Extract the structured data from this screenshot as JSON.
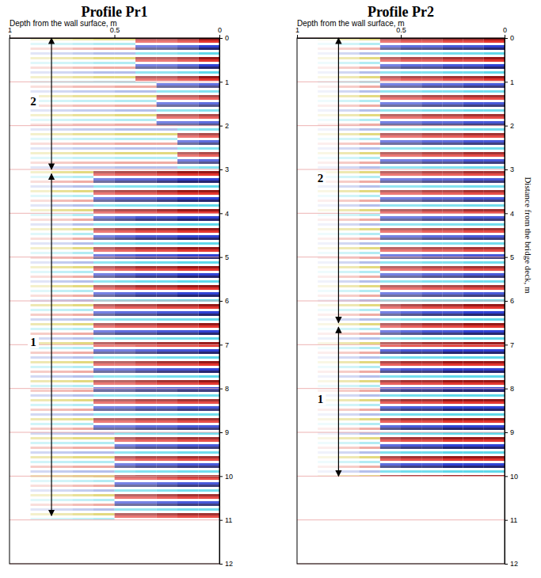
{
  "chart_data": [
    {
      "type": "heatmap",
      "title": "Profile Pr1",
      "x_label": "Depth from the wall surface, m",
      "xlim": [
        1,
        0
      ],
      "xticks": [
        1,
        0.5,
        0
      ],
      "ylim": [
        0,
        12
      ],
      "yticks": [
        0,
        1,
        2,
        3,
        4,
        5,
        6,
        7,
        8,
        9,
        10,
        11,
        12
      ],
      "grid": true,
      "depth_bins": [
        0,
        0.1,
        0.2,
        0.3,
        0.4,
        0.5,
        0.6,
        0.7,
        0.8,
        0.9
      ],
      "distance_bins": [
        0,
        1,
        2,
        3,
        4,
        5,
        6,
        7,
        8,
        9,
        10,
        11
      ],
      "amplitude": [
        [
          0.9,
          0.7,
          0.6,
          0.6,
          0.5,
          0.5,
          0.4,
          0.3,
          0.2
        ],
        [
          0.7,
          0.6,
          0.6,
          0.5,
          0.5,
          0.4,
          0.4,
          0.3,
          0.2
        ],
        [
          0.7,
          0.6,
          0.5,
          0.5,
          0.5,
          0.4,
          0.4,
          0.3,
          0.2
        ],
        [
          0.9,
          0.9,
          0.8,
          0.7,
          0.7,
          0.6,
          0.5,
          0.4,
          0.2
        ],
        [
          0.9,
          0.9,
          0.8,
          0.8,
          0.7,
          0.6,
          0.5,
          0.3,
          0.2
        ],
        [
          0.9,
          0.9,
          0.8,
          0.8,
          0.7,
          0.6,
          0.5,
          0.4,
          0.2
        ],
        [
          0.9,
          0.8,
          0.8,
          0.7,
          0.7,
          0.6,
          0.5,
          0.4,
          0.3
        ],
        [
          0.9,
          0.8,
          0.8,
          0.7,
          0.6,
          0.6,
          0.5,
          0.4,
          0.3
        ],
        [
          0.8,
          0.8,
          0.7,
          0.7,
          0.6,
          0.6,
          0.5,
          0.4,
          0.3
        ],
        [
          0.8,
          0.8,
          0.7,
          0.7,
          0.6,
          0.5,
          0.5,
          0.4,
          0.3
        ],
        [
          0.8,
          0.8,
          0.7,
          0.6,
          0.6,
          0.5,
          0.4,
          0.3,
          0.2
        ]
      ],
      "zones": [
        {
          "label": "2",
          "start": 0,
          "end": 3
        },
        {
          "label": "1",
          "start": 3.1,
          "end": 10.9
        }
      ]
    },
    {
      "type": "heatmap",
      "title": "Profile Pr2",
      "x_label": "Depth from the wall surface, m",
      "y_label": "Distance from the bridge deck, m",
      "xlim": [
        1,
        0
      ],
      "xticks": [
        1,
        0.5,
        0
      ],
      "ylim": [
        0,
        12
      ],
      "yticks": [
        0,
        1,
        2,
        3,
        4,
        5,
        6,
        7,
        8,
        9,
        10,
        11,
        12
      ],
      "grid": true,
      "depth_bins": [
        0,
        0.1,
        0.2,
        0.3,
        0.4,
        0.5,
        0.6,
        0.7,
        0.8,
        0.9
      ],
      "distance_bins": [
        0,
        1,
        2,
        3,
        4,
        5,
        6,
        7,
        8,
        9,
        10
      ],
      "amplitude": [
        [
          0.9,
          0.8,
          0.8,
          0.7,
          0.7,
          0.6,
          0.5,
          0.3,
          0.1
        ],
        [
          0.8,
          0.8,
          0.7,
          0.7,
          0.6,
          0.6,
          0.5,
          0.3,
          0.1
        ],
        [
          0.8,
          0.8,
          0.7,
          0.7,
          0.6,
          0.6,
          0.5,
          0.3,
          0.1
        ],
        [
          0.8,
          0.8,
          0.7,
          0.7,
          0.6,
          0.6,
          0.5,
          0.3,
          0.1
        ],
        [
          0.8,
          0.8,
          0.7,
          0.7,
          0.6,
          0.6,
          0.5,
          0.3,
          0.1
        ],
        [
          0.8,
          0.8,
          0.7,
          0.7,
          0.6,
          0.6,
          0.5,
          0.3,
          0.1
        ],
        [
          0.9,
          0.9,
          0.8,
          0.8,
          0.7,
          0.6,
          0.5,
          0.3,
          0.1
        ],
        [
          0.9,
          0.9,
          0.9,
          0.8,
          0.8,
          0.7,
          0.5,
          0.3,
          0.1
        ],
        [
          0.9,
          0.9,
          0.9,
          0.8,
          0.8,
          0.7,
          0.5,
          0.3,
          0.1
        ],
        [
          0.9,
          0.9,
          0.9,
          0.8,
          0.8,
          0.7,
          0.5,
          0.3,
          0.1
        ]
      ],
      "zones": [
        {
          "label": "2",
          "start": 0,
          "end": 6.5
        },
        {
          "label": "1",
          "start": 6.6,
          "end": 10
        }
      ]
    }
  ]
}
